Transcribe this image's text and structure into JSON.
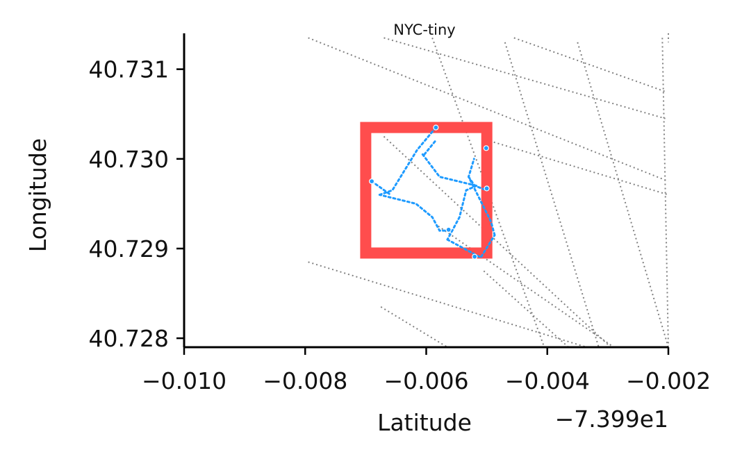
{
  "chart_data": {
    "type": "scatter",
    "title": "NYC-tiny",
    "xlabel": "Latitude",
    "ylabel": "Longitude",
    "x_offset_label": "−7.399e1",
    "xlim": [
      -0.01,
      -0.002
    ],
    "ylim": [
      40.7279,
      40.7314
    ],
    "x_ticks": [
      -0.01,
      -0.008,
      -0.006,
      -0.004,
      -0.002
    ],
    "x_tick_labels": [
      "−0.010",
      "−0.008",
      "−0.006",
      "−0.004",
      "−0.002"
    ],
    "y_ticks": [
      40.728,
      40.729,
      40.73,
      40.731
    ],
    "y_tick_labels": [
      "40.728",
      "40.729",
      "40.730",
      "40.731"
    ],
    "grid": false,
    "colors": {
      "road": "#808080",
      "path": "#1e9bff",
      "box": "#ff4d4d",
      "axis": "#000000"
    },
    "background_roads": [
      {
        "x": [
          -0.00795,
          -0.00175
        ],
        "y": [
          40.73135,
          40.72975
        ]
      },
      {
        "x": [
          -0.0067,
          -0.00205
        ],
        "y": [
          40.73135,
          40.73045
        ]
      },
      {
        "x": [
          -0.00455,
          -0.00205
        ],
        "y": [
          40.73135,
          40.73075
        ]
      },
      {
        "x": [
          -0.00185,
          -0.00175
        ],
        "y": [
          40.7314,
          40.7313
        ]
      },
      {
        "x": [
          -0.00495,
          -0.00175
        ],
        "y": [
          40.7302,
          40.7296
        ]
      },
      {
        "x": [
          -0.00795,
          -0.00335
        ],
        "y": [
          40.72885,
          40.7279
        ]
      },
      {
        "x": [
          -0.0058,
          -0.0029
        ],
        "y": [
          40.72925,
          40.7279
        ]
      },
      {
        "x": [
          -0.00505,
          -0.00365
        ],
        "y": [
          40.72875,
          40.7279
        ]
      },
      {
        "x": [
          -0.0067,
          -0.00295
        ],
        "y": [
          40.73025,
          40.7279
        ]
      },
      {
        "x": [
          -0.00675,
          -0.00565
        ],
        "y": [
          40.72835,
          40.7279
        ]
      },
      {
        "x": [
          -0.0059,
          -0.00405
        ],
        "y": [
          40.73135,
          40.7279
        ]
      },
      {
        "x": [
          -0.0047,
          -0.00315
        ],
        "y": [
          40.7313,
          40.7279
        ]
      },
      {
        "x": [
          -0.0035,
          -0.002
        ],
        "y": [
          40.7313,
          40.7279
        ]
      },
      {
        "x": [
          -0.0021,
          -0.0018
        ],
        "y": [
          40.73135,
          40.7279
        ]
      }
    ],
    "path_segments": [
      {
        "x": [
          -0.00606,
          -0.00578,
          -0.00517
        ],
        "y": [
          40.73005,
          40.7298,
          40.7297
        ]
      },
      {
        "x": [
          -0.00517,
          -0.00534,
          -0.00545,
          -0.00565
        ],
        "y": [
          40.7297,
          40.72965,
          40.72935,
          40.7291
        ]
      },
      {
        "x": [
          -0.00565,
          -0.0051,
          -0.00487
        ],
        "y": [
          40.7291,
          40.7289,
          40.72915
        ]
      },
      {
        "x": [
          -0.00487,
          -0.00493,
          -0.0053,
          -0.00521
        ],
        "y": [
          40.72915,
          40.7293,
          40.7298,
          40.73
        ]
      },
      {
        "x": [
          -0.00569,
          -0.00578,
          -0.0059,
          -0.00617,
          -0.00677
        ],
        "y": [
          40.7292,
          40.7292,
          40.72935,
          40.7295,
          40.7296
        ]
      },
      {
        "x": [
          -0.00677,
          -0.00656,
          -0.00615,
          -0.00584
        ],
        "y": [
          40.7296,
          40.72965,
          40.7301,
          40.73035
        ]
      },
      {
        "x": [
          -0.0069,
          -0.00659
        ],
        "y": [
          40.72975,
          40.7296
        ]
      },
      {
        "x": [
          -0.00603,
          -0.00585
        ],
        "y": [
          40.73005,
          40.7302
        ]
      },
      {
        "x": [
          -0.0053,
          -0.0052,
          -0.005
        ],
        "y": [
          40.7298,
          40.7297,
          40.72965
        ]
      }
    ],
    "path_points": [
      {
        "x": -0.00584,
        "y": 40.73035
      },
      {
        "x": -0.00501,
        "y": 40.73012
      },
      {
        "x": -0.0069,
        "y": 40.72975
      },
      {
        "x": -0.005,
        "y": 40.72967
      },
      {
        "x": -0.0052,
        "y": 40.72891
      },
      {
        "x": -0.00563,
        "y": 40.72921
      }
    ],
    "selection_box": {
      "x": [
        -0.007,
        -0.005
      ],
      "y": [
        40.72895,
        40.73035
      ]
    }
  }
}
